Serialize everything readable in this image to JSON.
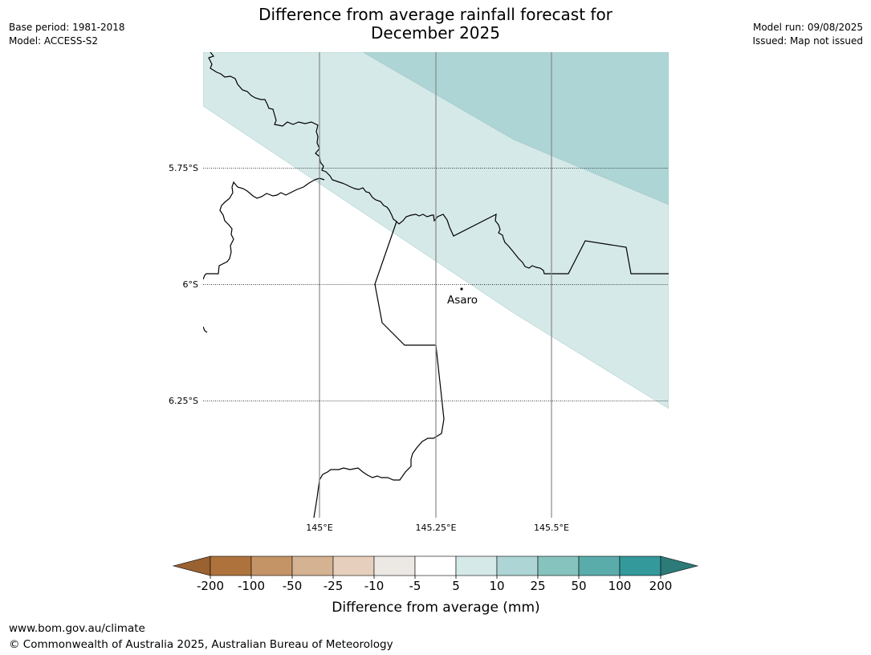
{
  "header": {
    "title_line1": "Difference from average rainfall forecast for",
    "title_line2": "December 2025",
    "base_period": "Base period: 1981-2018",
    "model": "Model: ACCESS-S2",
    "model_run": "Model run: 09/08/2025",
    "issued": "Issued: Map not issued"
  },
  "map": {
    "lat_labels": [
      "5.75°S",
      "6°S",
      "6.25°S"
    ],
    "lon_labels": [
      "145°E",
      "145.25°E",
      "145.5°E"
    ],
    "place": {
      "name": "Asaro"
    },
    "shading_colors": {
      "band_5_10": "#d5e9e8",
      "band_10_25": "#aed5d5"
    }
  },
  "legend": {
    "title": "Difference from average (mm)",
    "tick_labels": [
      "-200",
      "-100",
      "-50",
      "-25",
      "-10",
      "-5",
      "5",
      "10",
      "25",
      "50",
      "100",
      "200"
    ],
    "colors": [
      "#9a6131",
      "#ae733c",
      "#c49467",
      "#d4b292",
      "#e6d0bd",
      "#ece9e5",
      "#ffffff",
      "#d5e9e8",
      "#aed5d5",
      "#86c3bf",
      "#5aacab",
      "#34999a",
      "#2d7b79"
    ]
  },
  "footer": {
    "url": "www.bom.gov.au/climate",
    "copyright": "© Commonwealth of Australia 2025, Australian Bureau of Meteorology"
  }
}
